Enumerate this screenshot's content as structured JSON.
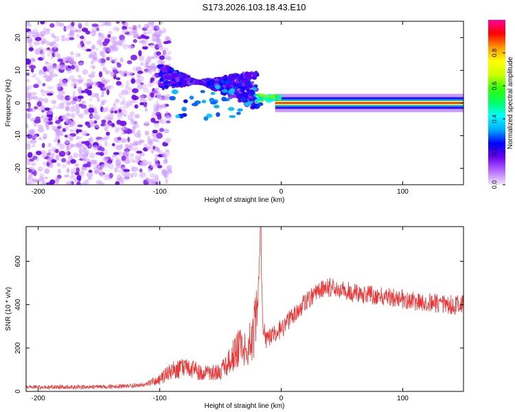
{
  "title": "S173.2026.103.18.43.E10",
  "chart_data": [
    {
      "type": "heatmap",
      "title": "S173.2026.103.18.43.E10",
      "xlabel": "Height of straight line (km)",
      "ylabel": "Frequency (Hz)",
      "xlim": [
        -210,
        150
      ],
      "ylim": [
        -25,
        25
      ],
      "xticks": [
        -200,
        -100,
        0,
        100
      ],
      "yticks": [
        -20,
        -10,
        0,
        10,
        20
      ],
      "grid": false,
      "colorbar": {
        "label": "Normalized spectral amplitude",
        "range": [
          0,
          1
        ],
        "ticks": [
          0.0,
          0.2,
          0.4,
          0.6,
          0.8
        ],
        "colors": [
          "#f2e6ff",
          "#b56cff",
          "#6a00f0",
          "#0000ff",
          "#00aaff",
          "#00ffff",
          "#00ff66",
          "#33ff00",
          "#ccff00",
          "#ffff00",
          "#ff9900",
          "#ff0000",
          "#ff0099"
        ]
      },
      "features": {
        "noise_region_x": [
          -210,
          -100
        ],
        "scatter_band_x": [
          -100,
          -20
        ],
        "tone_start_x": -20,
        "tone_frequency_hz": 0,
        "tone_peak_x_range": [
          10,
          150
        ]
      }
    },
    {
      "type": "line",
      "xlabel": "Height of straight line (km)",
      "ylabel": "SNR (10 * v/v)",
      "xlim": [
        -210,
        150
      ],
      "ylim": [
        0,
        760
      ],
      "xticks": [
        -200,
        -100,
        0,
        100
      ],
      "yticks": [
        0,
        200,
        400,
        600
      ],
      "grid": false,
      "series": [
        {
          "name": "SNR",
          "color": "#ee3333",
          "x": [
            -210,
            -180,
            -150,
            -125,
            -110,
            -100,
            -90,
            -80,
            -70,
            -60,
            -50,
            -40,
            -35,
            -30,
            -25,
            -20,
            -17,
            -15,
            -12,
            -8,
            -5,
            0,
            5,
            10,
            15,
            20,
            25,
            30,
            35,
            40,
            45,
            50,
            60,
            70,
            80,
            90,
            100,
            110,
            120,
            130,
            140,
            150
          ],
          "values": [
            20,
            20,
            20,
            25,
            35,
            55,
            95,
            110,
            95,
            80,
            90,
            160,
            210,
            200,
            230,
            330,
            700,
            290,
            240,
            260,
            270,
            290,
            320,
            350,
            380,
            410,
            440,
            460,
            470,
            480,
            480,
            470,
            455,
            445,
            440,
            435,
            425,
            415,
            410,
            405,
            400,
            400
          ]
        }
      ]
    }
  ]
}
